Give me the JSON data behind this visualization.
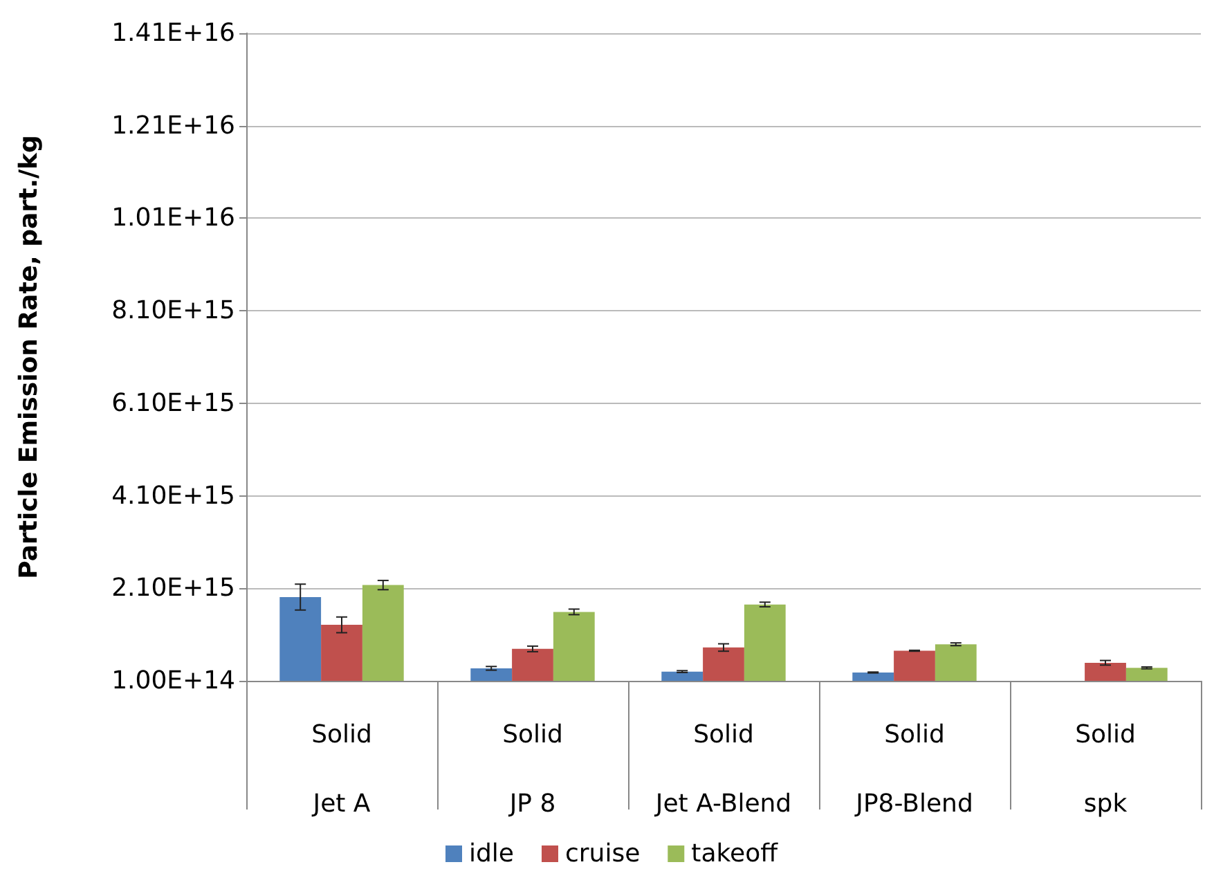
{
  "chart_data": {
    "type": "bar",
    "ylabel": "Particle Emission Rate, part./kg",
    "categories": [
      "Solid\nJet A",
      "Solid\nJP 8",
      "Solid\nJet A-Blend",
      "Solid\nJP8-Blend",
      "Solid\nspk"
    ],
    "series": [
      {
        "name": "idle",
        "color": "#4f81bd",
        "values": [
          1910000000000000.0,
          370000000000000.0,
          300000000000000.0,
          280000000000000.0,
          100000000000000.0
        ],
        "errors": [
          280000000000000.0,
          40000000000000.0,
          20000000000000.0,
          10000000000000.0,
          null
        ]
      },
      {
        "name": "cruise",
        "color": "#c0504d",
        "values": [
          1310000000000000.0,
          790000000000000.0,
          820000000000000.0,
          750000000000000.0,
          490000000000000.0
        ],
        "errors": [
          170000000000000.0,
          60000000000000.0,
          80000000000000.0,
          10000000000000.0,
          50000000000000.0
        ]
      },
      {
        "name": "takeoff",
        "color": "#9bbb59",
        "values": [
          2170000000000000.0,
          1590000000000000.0,
          1750000000000000.0,
          890000000000000.0,
          380000000000000.0
        ],
        "errors": [
          100000000000000.0,
          60000000000000.0,
          50000000000000.0,
          30000000000000.0,
          20000000000000.0
        ]
      }
    ],
    "ylim": [
      100000000000000.0,
      1.41e+16
    ],
    "yticks": [
      {
        "value": 100000000000000.0,
        "label": "1.00E+14"
      },
      {
        "value": 2100000000000000.0,
        "label": "2.10E+15"
      },
      {
        "value": 4100000000000000.0,
        "label": "4.10E+15"
      },
      {
        "value": 6100000000000000.0,
        "label": "6.10E+15"
      },
      {
        "value": 8100000000000000.0,
        "label": "8.10E+15"
      },
      {
        "value": 1.01e+16,
        "label": "1.01E+16"
      },
      {
        "value": 1.21e+16,
        "label": "1.21E+16"
      },
      {
        "value": 1.41e+16,
        "label": "1.41E+16"
      }
    ],
    "grid": "y",
    "legend": "bottom"
  }
}
